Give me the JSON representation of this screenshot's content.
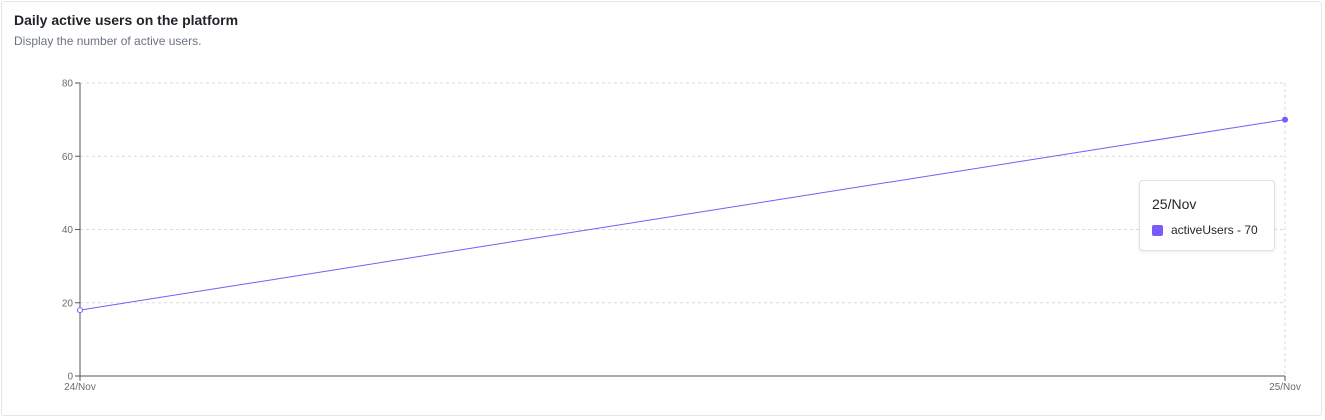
{
  "header": {
    "title": "Daily active users on the platform",
    "subtitle": "Display the number of active users."
  },
  "colors": {
    "series": "#7a5af8",
    "grid": "#d9d9d9",
    "axis": "#555555"
  },
  "chart_data": {
    "type": "line",
    "x": [
      "24/Nov",
      "25/Nov"
    ],
    "series": [
      {
        "name": "activeUsers",
        "values": [
          18,
          70
        ]
      }
    ],
    "ylim": [
      0,
      80
    ],
    "yticks": [
      0,
      20,
      40,
      60,
      80
    ],
    "grid": true,
    "tooltip": {
      "title": "25/Nov",
      "label": "activeUsers - 70"
    }
  }
}
